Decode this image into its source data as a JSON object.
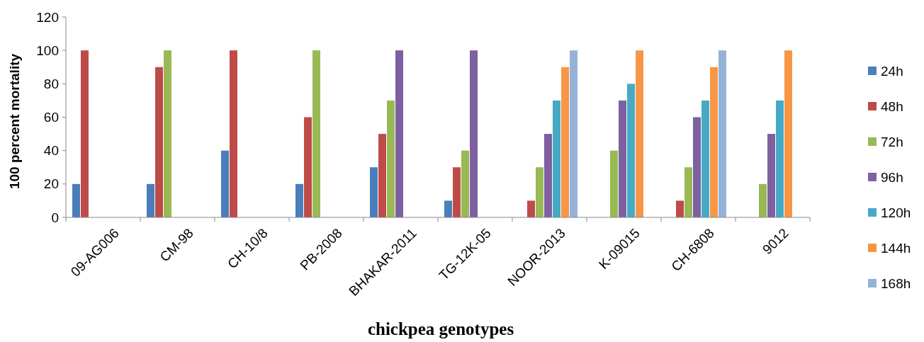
{
  "chart_data": {
    "type": "bar",
    "xlabel": "chickpea genotypes",
    "ylabel": "100 percent mortality",
    "categories": [
      "09-AG006",
      "CM-98",
      "CH-10/8",
      "PB-2008",
      "BHAKAR-2011",
      "TG-12K-05",
      "NOOR-2013",
      "K-09015",
      "CH-6808",
      "9012"
    ],
    "series": [
      {
        "name": "24h",
        "color": "#4a7ebb",
        "values": [
          20,
          20,
          40,
          20,
          30,
          10,
          null,
          null,
          null,
          null
        ]
      },
      {
        "name": "48h",
        "color": "#be4b48",
        "values": [
          100,
          90,
          100,
          60,
          50,
          30,
          10,
          null,
          10,
          null
        ]
      },
      {
        "name": "72h",
        "color": "#98b954",
        "values": [
          null,
          100,
          null,
          100,
          70,
          40,
          30,
          40,
          30,
          20
        ]
      },
      {
        "name": "96h",
        "color": "#7d60a0",
        "values": [
          null,
          null,
          null,
          null,
          100,
          100,
          50,
          70,
          60,
          50
        ]
      },
      {
        "name": "120h",
        "color": "#46aac5",
        "values": [
          null,
          null,
          null,
          null,
          null,
          null,
          70,
          80,
          70,
          70
        ]
      },
      {
        "name": "144h",
        "color": "#f79646",
        "values": [
          null,
          null,
          null,
          null,
          null,
          null,
          90,
          100,
          90,
          100
        ]
      },
      {
        "name": "168h",
        "color": "#95b3d7",
        "values": [
          null,
          null,
          null,
          null,
          null,
          null,
          100,
          null,
          100,
          null
        ]
      }
    ],
    "ylim": [
      0,
      120
    ],
    "yticks": [
      0,
      20,
      40,
      60,
      80,
      100,
      120
    ],
    "grid": false,
    "legend": "right"
  }
}
